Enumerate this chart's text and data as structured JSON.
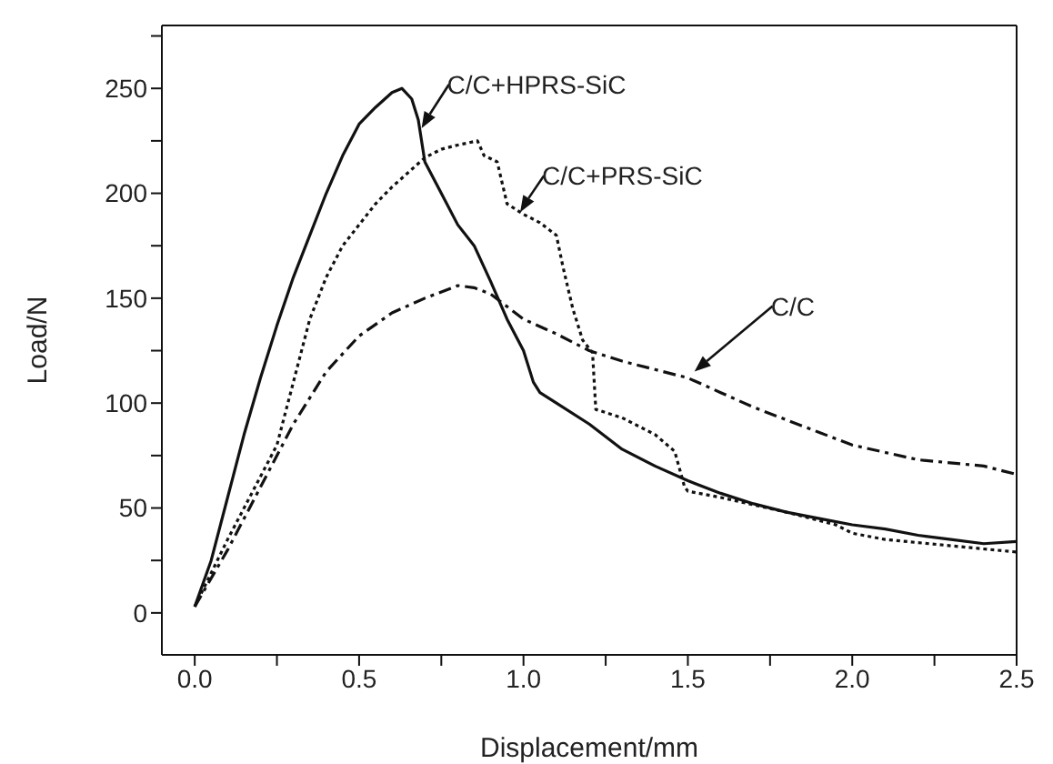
{
  "chart_data": {
    "type": "line",
    "xlabel": "Displacement/mm",
    "ylabel": "Load/N",
    "xlim": [
      -0.1,
      2.5
    ],
    "ylim": [
      -20,
      280
    ],
    "xticks": [
      {
        "value": 0,
        "label": "0.0"
      },
      {
        "value": 0.25,
        "label": null
      },
      0.5,
      {
        "value": 0.75,
        "label": null
      },
      {
        "value": 1,
        "label": "1.0"
      },
      {
        "value": 1.25,
        "label": null
      },
      1.5,
      {
        "value": 1.75,
        "label": null
      },
      {
        "value": 2,
        "label": "2.0"
      },
      {
        "value": 2.25,
        "label": null
      },
      2.5
    ],
    "yticks": [
      0,
      {
        "value": 25,
        "label": null
      },
      50,
      {
        "value": 75,
        "label": null
      },
      100,
      {
        "value": 125,
        "label": null
      },
      150,
      {
        "value": 175,
        "label": null
      },
      200,
      {
        "value": 225,
        "label": null
      },
      250,
      {
        "value": 275,
        "label": null
      }
    ],
    "grid": false,
    "marker": "none",
    "series": [
      {
        "color": "#111111",
        "line_style": "solid",
        "x": [
          0,
          0.05,
          0.1,
          0.15,
          0.2,
          0.25,
          0.3,
          0.35,
          0.4,
          0.45,
          0.5,
          0.55,
          0.6,
          0.63,
          0.66,
          0.68,
          0.7,
          0.75,
          0.8,
          0.85,
          0.9,
          0.95,
          1.0,
          1.03,
          1.05,
          1.1,
          1.2,
          1.3,
          1.4,
          1.5,
          1.6,
          1.7,
          1.8,
          1.9,
          2.0,
          2.1,
          2.2,
          2.3,
          2.4,
          2.5
        ],
        "values": [
          3,
          25,
          55,
          85,
          112,
          137,
          160,
          180,
          200,
          218,
          233,
          241,
          248,
          250,
          245,
          235,
          215,
          200,
          185,
          175,
          158,
          140,
          125,
          110,
          105,
          100,
          90,
          78,
          70,
          63,
          57,
          52,
          48,
          45,
          42,
          40,
          37,
          35,
          33,
          34
        ]
      },
      {
        "color": "#111111",
        "line_style": "dotted",
        "x": [
          0,
          0.1,
          0.2,
          0.25,
          0.3,
          0.35,
          0.4,
          0.45,
          0.5,
          0.55,
          0.6,
          0.65,
          0.7,
          0.75,
          0.8,
          0.86,
          0.88,
          0.92,
          0.95,
          1.0,
          1.05,
          1.1,
          1.12,
          1.15,
          1.18,
          1.21,
          1.22,
          1.3,
          1.4,
          1.46,
          1.49,
          1.5,
          1.6,
          1.8,
          1.95,
          2.0,
          2.1,
          2.3,
          2.5
        ],
        "values": [
          3,
          35,
          65,
          80,
          110,
          140,
          160,
          175,
          185,
          195,
          203,
          210,
          217,
          221,
          223,
          225,
          218,
          215,
          195,
          190,
          186,
          180,
          165,
          145,
          130,
          124,
          97,
          93,
          85,
          77,
          60,
          58,
          55,
          48,
          42,
          38,
          35,
          32,
          29
        ]
      },
      {
        "color": "#111111",
        "line_style": "dashdot",
        "x": [
          0,
          0.1,
          0.2,
          0.3,
          0.4,
          0.5,
          0.6,
          0.7,
          0.8,
          0.85,
          0.9,
          1.0,
          1.1,
          1.2,
          1.3,
          1.4,
          1.5,
          1.6,
          1.7,
          1.8,
          1.9,
          2.0,
          2.2,
          2.4,
          2.5
        ],
        "values": [
          3,
          30,
          60,
          90,
          115,
          132,
          143,
          150,
          156,
          155,
          152,
          140,
          133,
          125,
          120,
          116,
          112,
          105,
          98,
          92,
          86,
          80,
          73,
          70,
          66
        ]
      }
    ],
    "annotations": [
      {
        "text": "C/C+HPRS-SiC",
        "x": 0.69,
        "y": 231
      },
      {
        "text": "C/C+PRS-SiC",
        "x": 0.99,
        "y": 191
      },
      {
        "text": "C/C",
        "x": 1.52,
        "y": 115
      }
    ]
  }
}
